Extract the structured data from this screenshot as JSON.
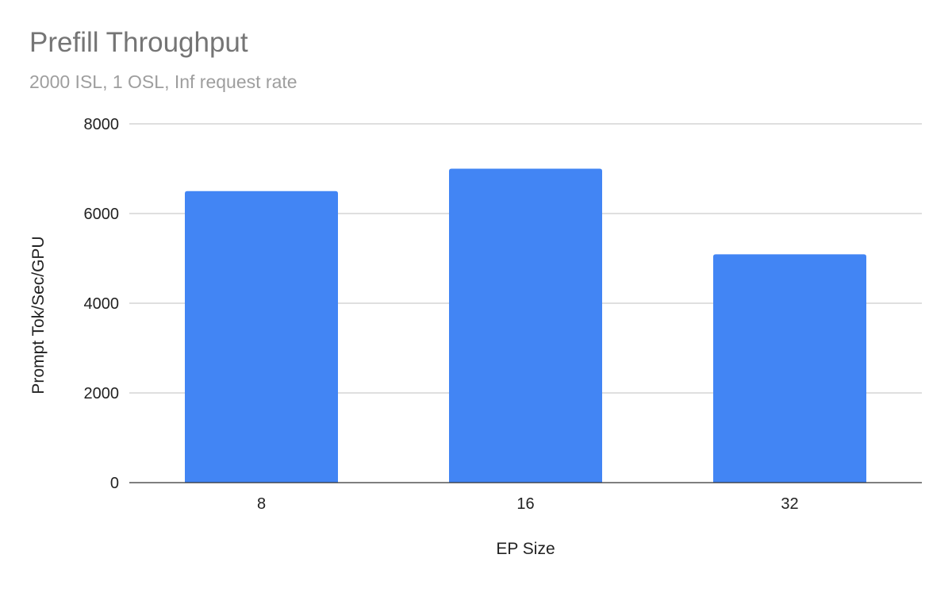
{
  "chart_data": {
    "type": "bar",
    "title": "Prefill Throughput",
    "subtitle": "2000 ISL, 1 OSL, Inf request rate",
    "xlabel": "EP Size",
    "ylabel": "Prompt Tok/Sec/GPU",
    "categories": [
      "8",
      "16",
      "32"
    ],
    "values": [
      6500,
      7000,
      5090
    ],
    "ylim": [
      0,
      8000
    ],
    "yticks": [
      0,
      2000,
      4000,
      6000,
      8000
    ],
    "grid": true,
    "legend": "none",
    "bar_color": "#4285f4"
  }
}
